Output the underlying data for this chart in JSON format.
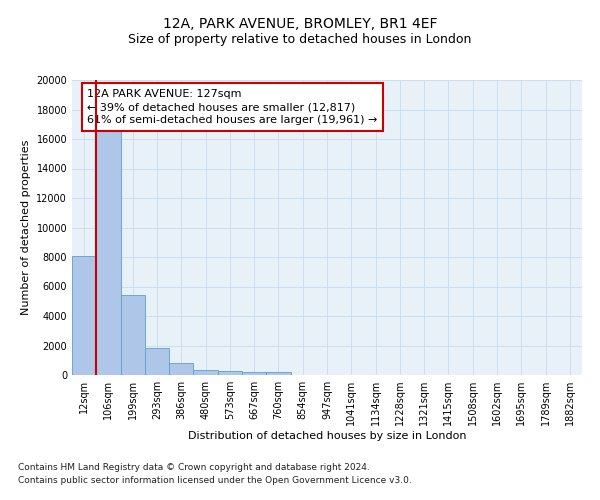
{
  "title": "12A, PARK AVENUE, BROMLEY, BR1 4EF",
  "subtitle": "Size of property relative to detached houses in London",
  "xlabel": "Distribution of detached houses by size in London",
  "ylabel": "Number of detached properties",
  "categories": [
    "12sqm",
    "106sqm",
    "199sqm",
    "293sqm",
    "386sqm",
    "480sqm",
    "573sqm",
    "667sqm",
    "760sqm",
    "854sqm",
    "947sqm",
    "1041sqm",
    "1134sqm",
    "1228sqm",
    "1321sqm",
    "1415sqm",
    "1508sqm",
    "1602sqm",
    "1695sqm",
    "1789sqm",
    "1882sqm"
  ],
  "values": [
    8100,
    16600,
    5400,
    1850,
    800,
    350,
    270,
    210,
    180,
    0,
    0,
    0,
    0,
    0,
    0,
    0,
    0,
    0,
    0,
    0,
    0
  ],
  "bar_color": "#aec6e8",
  "bar_edge_color": "#5a9fd4",
  "vline_color": "#cc0000",
  "annotation_text": "12A PARK AVENUE: 127sqm\n← 39% of detached houses are smaller (12,817)\n61% of semi-detached houses are larger (19,961) →",
  "annotation_box_color": "#ffffff",
  "annotation_box_edge": "#cc0000",
  "ylim": [
    0,
    20000
  ],
  "yticks": [
    0,
    2000,
    4000,
    6000,
    8000,
    10000,
    12000,
    14000,
    16000,
    18000,
    20000
  ],
  "grid_color": "#c8dced",
  "footnote1": "Contains HM Land Registry data © Crown copyright and database right 2024.",
  "footnote2": "Contains public sector information licensed under the Open Government Licence v3.0.",
  "bg_color": "#e8f1f8",
  "fig_bg_color": "#ffffff",
  "title_fontsize": 10,
  "subtitle_fontsize": 9,
  "axis_label_fontsize": 8,
  "tick_fontsize": 7,
  "annotation_fontsize": 8,
  "footnote_fontsize": 6.5
}
